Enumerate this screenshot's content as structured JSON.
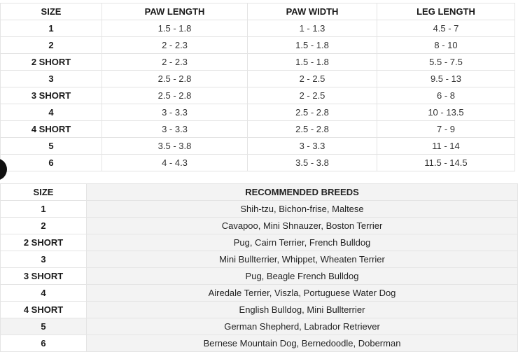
{
  "measurements": {
    "headers": [
      "SIZE",
      "PAW LENGTH",
      "PAW WIDTH",
      "LEG LENGTH"
    ],
    "rows": [
      [
        "1",
        "1.5 - 1.8",
        "1 - 1.3",
        "4.5 - 7"
      ],
      [
        "2",
        "2 - 2.3",
        "1.5 - 1.8",
        "8 - 10"
      ],
      [
        "2 SHORT",
        "2 - 2.3",
        "1.5 - 1.8",
        "5.5 - 7.5"
      ],
      [
        "3",
        "2.5 - 2.8",
        "2 - 2.5",
        "9.5 - 13"
      ],
      [
        "3 SHORT",
        "2.5 - 2.8",
        "2 - 2.5",
        "6 - 8"
      ],
      [
        "4",
        "3 - 3.3",
        "2.5 - 2.8",
        "10 - 13.5"
      ],
      [
        "4 SHORT",
        "3 - 3.3",
        "2.5 - 2.8",
        "7 - 9"
      ],
      [
        "5",
        "3.5 - 3.8",
        "3 - 3.3",
        "11 - 14"
      ],
      [
        "6",
        "4 - 4.3",
        "3.5 - 3.8",
        "11.5 - 14.5"
      ]
    ]
  },
  "breeds": {
    "headers": [
      "SIZE",
      "RECOMMENDED BREEDS"
    ],
    "rows": [
      [
        "1",
        "Shih-tzu, Bichon-frise, Maltese"
      ],
      [
        "2",
        "Cavapoo, Mini Shnauzer, Boston Terrier"
      ],
      [
        "2 SHORT",
        "Pug, Cairn Terrier, French Bulldog"
      ],
      [
        "3",
        "Mini Bullterrier, Whippet, Wheaten Terrier"
      ],
      [
        "3 SHORT",
        "Pug, Beagle French Bulldog"
      ],
      [
        "4",
        "Airedale Terrier, Viszla, Portuguese Water Dog"
      ],
      [
        "4 SHORT",
        "English Bulldog, Mini Bullterrier"
      ],
      [
        "5",
        "German Shepherd, Labrador Retriever"
      ],
      [
        "6",
        "Bernese Mountain Dog, Bernedoodle, Doberman"
      ]
    ]
  }
}
